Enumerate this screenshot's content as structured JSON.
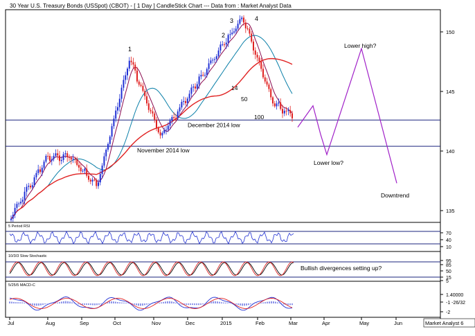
{
  "chart_data": {
    "type": "candlestick",
    "title": "30 Year U.S. Treasury Bonds (USSpot) (CBOT) - [ 1 Day ] CandleStick Chart --- Data from : Market Analyst Data",
    "credit": "Market Analyst 6",
    "x_months": [
      "Jul",
      "Aug",
      "Sep",
      "Oct",
      "Nov",
      "Dec",
      "2015",
      "Feb",
      "Mar",
      "Apr",
      "May",
      "Jun"
    ],
    "price_axis": {
      "ticks": [
        "150",
        "145",
        "140",
        "135"
      ],
      "ylim": [
        133.5,
        151.5
      ]
    },
    "horizontal_levels": [
      {
        "label": "December 2014 low",
        "value": 142.6
      },
      {
        "label": "November 2014 low",
        "value": 140.4
      }
    ],
    "moving_averages": [
      "14",
      "50",
      "100"
    ],
    "wave_labels": [
      "1",
      "2",
      "3",
      "4"
    ],
    "price_series_approx": [
      {
        "date": "Jul",
        "value": 134.5
      },
      {
        "date": "Aug",
        "value": 139.5
      },
      {
        "date": "early Sep",
        "value": 139.5
      },
      {
        "date": "mid Sep",
        "value": 137.0
      },
      {
        "date": "Oct peak",
        "value": 147.8
      },
      {
        "date": "Nov",
        "value": 141.2
      },
      {
        "date": "mid Dec",
        "value": 145.8
      },
      {
        "date": "Jan peak",
        "value": 151.2
      },
      {
        "date": "Feb",
        "value": 144.0
      },
      {
        "date": "Mar",
        "value": 143.0
      }
    ],
    "forecast": {
      "path": [
        {
          "date": "early Mar",
          "value": 142.0
        },
        {
          "date": "mid Mar",
          "value": 143.8
        },
        {
          "date": "late Mar",
          "value": 141.4
        },
        {
          "date": "mid Apr",
          "value": 139.7
        },
        {
          "date": "May",
          "value": 148.6
        },
        {
          "date": "Jun",
          "value": 137.3
        }
      ],
      "annotations": [
        "Lower high?",
        "Lower low?",
        "Downtrend"
      ]
    },
    "rsi_panel": {
      "title": "5 Period RSI",
      "ticks": [
        "70",
        "40",
        "10"
      ]
    },
    "stochastic_panel": {
      "title": "10/3/3 Slow Stochastic",
      "ticks": [
        "95",
        "85",
        "50",
        "15",
        "5"
      ],
      "annotation": "Bullish divergences setting up?"
    },
    "macd_panel": {
      "title": "5/25/5 MACD-C",
      "ticks": [
        "1.40000",
        "-1 -26/32",
        "-2"
      ]
    },
    "colors": {
      "up": "#1f2fd4",
      "down": "#e02020",
      "ma_14": "#8b0a50",
      "ma_50": "#0a7fa8",
      "ma_100": "#e02020",
      "forecast": "#a020c8",
      "signal": "#e02020"
    }
  }
}
